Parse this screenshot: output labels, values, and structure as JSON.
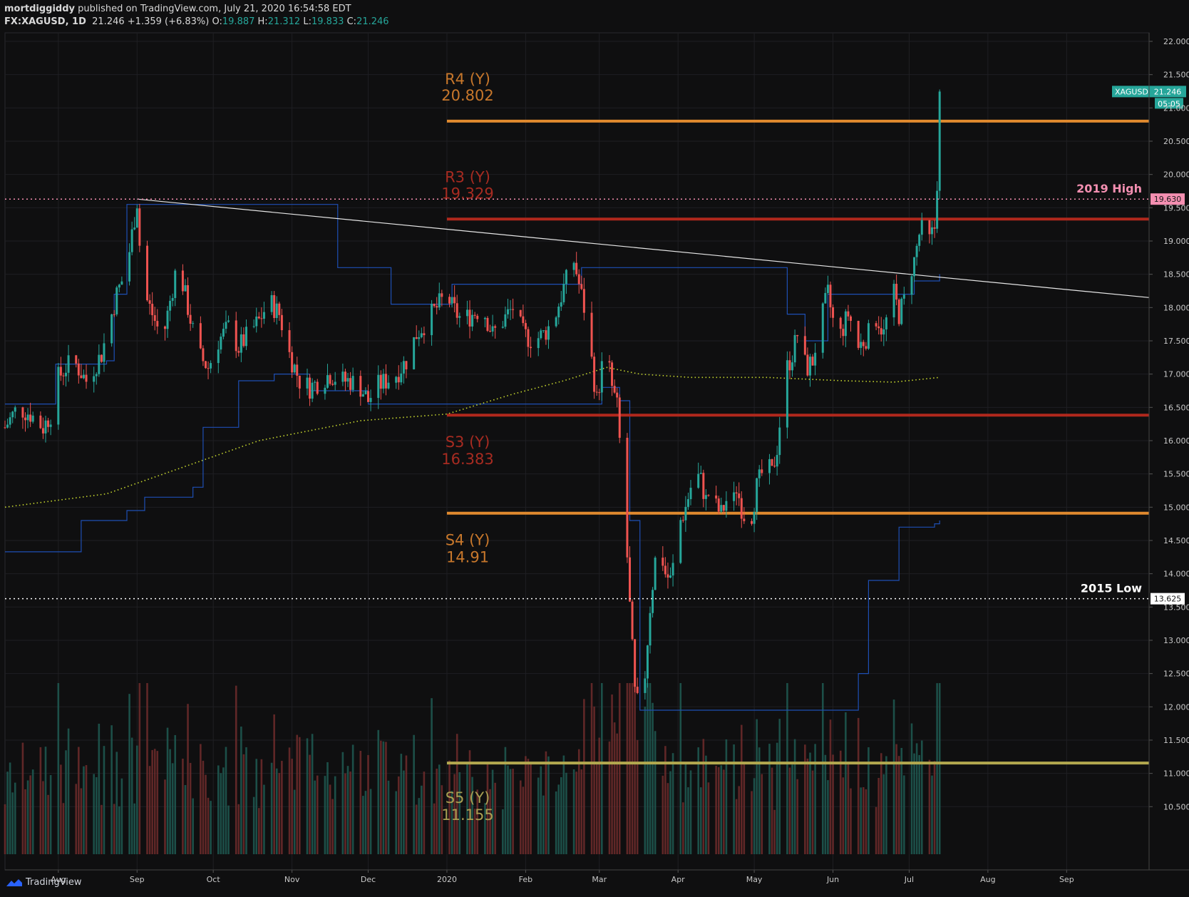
{
  "header": {
    "author": "mortdiggiddy",
    "published": " published on TradingView.com, July 21, 2020 16:54:58 EDT",
    "symbol": "FX:XAGUSD, 1D",
    "last": "21.246",
    "change": "+1.359 (+6.83%)",
    "o_label": "O:",
    "o": "19.887",
    "h_label": "H:",
    "h": "21.312",
    "l_label": "L:",
    "l": "19.833",
    "c_label": "C:",
    "c": "21.246"
  },
  "footer": {
    "brand": "TradingView",
    "logo_icon": "tradingview-logo-icon"
  },
  "colors": {
    "background": "#0f0f10",
    "up": "#26a69a",
    "down": "#ef5350",
    "r4": "#e08a2e",
    "r3": "#b0281c",
    "s3": "#b0281c",
    "s4": "#e08a2e",
    "s5": "#b3a94f",
    "ma": "#c6d62e",
    "donchian": "#1e4fb4",
    "trend": "#e6e6e6"
  },
  "chart_data": {
    "type": "candlestick",
    "ylim": [
      10.2,
      22.2
    ],
    "y_ticks": [
      "10.500",
      "11.000",
      "11.500",
      "12.000",
      "12.500",
      "13.000",
      "13.500",
      "14.000",
      "14.500",
      "15.000",
      "15.500",
      "16.000",
      "16.500",
      "17.000",
      "17.500",
      "18.000",
      "18.500",
      "19.000",
      "19.500",
      "20.000",
      "20.500",
      "21.000",
      "21.500",
      "22.000"
    ],
    "x_ticks": [
      {
        "label": "Aug",
        "day": 21
      },
      {
        "label": "Sep",
        "day": 52
      },
      {
        "label": "Oct",
        "day": 82
      },
      {
        "label": "Nov",
        "day": 113
      },
      {
        "label": "Dec",
        "day": 143
      },
      {
        "label": "2020",
        "day": 174
      },
      {
        "label": "Feb",
        "day": 205
      },
      {
        "label": "Mar",
        "day": 234
      },
      {
        "label": "Apr",
        "day": 265
      },
      {
        "label": "May",
        "day": 295
      },
      {
        "label": "Jun",
        "day": 326
      },
      {
        "label": "Jul",
        "day": 356
      },
      {
        "label": "Aug",
        "day": 387
      },
      {
        "label": "Sep",
        "day": 418
      }
    ],
    "price_path": [
      [
        0,
        16.2
      ],
      [
        5,
        16.5
      ],
      [
        10,
        16.4
      ],
      [
        15,
        16.2
      ],
      [
        18,
        16.4
      ],
      [
        20,
        16.9
      ],
      [
        24,
        17.1
      ],
      [
        27,
        17.2
      ],
      [
        32,
        16.9
      ],
      [
        38,
        17.3
      ],
      [
        40,
        17.6
      ],
      [
        44,
        18.2
      ],
      [
        48,
        18.6
      ],
      [
        50,
        19.1
      ],
      [
        52,
        19.6
      ],
      [
        54,
        18.3
      ],
      [
        58,
        17.9
      ],
      [
        62,
        17.5
      ],
      [
        66,
        18.3
      ],
      [
        68,
        18.7
      ],
      [
        72,
        18.0
      ],
      [
        76,
        17.3
      ],
      [
        80,
        17.1
      ],
      [
        84,
        17.5
      ],
      [
        88,
        17.7
      ],
      [
        92,
        17.4
      ],
      [
        96,
        17.6
      ],
      [
        100,
        17.8
      ],
      [
        104,
        18.1
      ],
      [
        108,
        17.9
      ],
      [
        112,
        17.3
      ],
      [
        116,
        16.9
      ],
      [
        120,
        16.8
      ],
      [
        124,
        16.9
      ],
      [
        128,
        17.0
      ],
      [
        132,
        16.9
      ],
      [
        136,
        16.9
      ],
      [
        140,
        16.8
      ],
      [
        143,
        16.6
      ],
      [
        146,
        16.8
      ],
      [
        150,
        16.9
      ],
      [
        154,
        17.0
      ],
      [
        158,
        17.2
      ],
      [
        162,
        17.6
      ],
      [
        166,
        17.8
      ],
      [
        170,
        18.0
      ],
      [
        174,
        18.2
      ],
      [
        176,
        18.0
      ],
      [
        180,
        17.8
      ],
      [
        184,
        17.9
      ],
      [
        188,
        18.0
      ],
      [
        192,
        17.6
      ],
      [
        196,
        17.8
      ],
      [
        200,
        18.0
      ],
      [
        204,
        17.6
      ],
      [
        208,
        17.5
      ],
      [
        212,
        17.6
      ],
      [
        216,
        17.8
      ],
      [
        220,
        18.3
      ],
      [
        224,
        18.7
      ],
      [
        228,
        18.0
      ],
      [
        230,
        17.5
      ],
      [
        233,
        16.6
      ],
      [
        235,
        17.1
      ],
      [
        237,
        17.3
      ],
      [
        239,
        16.8
      ],
      [
        241,
        16.5
      ],
      [
        244,
        15.0
      ],
      [
        246,
        13.5
      ],
      [
        248,
        12.2
      ],
      [
        250,
        11.9
      ],
      [
        252,
        12.5
      ],
      [
        254,
        13.5
      ],
      [
        256,
        14.2
      ],
      [
        258,
        14.4
      ],
      [
        260,
        14.0
      ],
      [
        262,
        13.9
      ],
      [
        264,
        14.3
      ],
      [
        266,
        14.8
      ],
      [
        268,
        15.0
      ],
      [
        270,
        15.3
      ],
      [
        272,
        15.5
      ],
      [
        274,
        15.4
      ],
      [
        276,
        15.1
      ],
      [
        278,
        15.3
      ],
      [
        280,
        15.0
      ],
      [
        282,
        14.9
      ],
      [
        284,
        15.1
      ],
      [
        286,
        14.9
      ],
      [
        288,
        15.3
      ],
      [
        290,
        15.0
      ],
      [
        292,
        14.8
      ],
      [
        294,
        14.9
      ],
      [
        296,
        15.3
      ],
      [
        298,
        15.5
      ],
      [
        300,
        15.6
      ],
      [
        302,
        15.5
      ],
      [
        304,
        15.9
      ],
      [
        306,
        16.6
      ],
      [
        308,
        17.1
      ],
      [
        310,
        17.3
      ],
      [
        312,
        17.6
      ],
      [
        314,
        17.2
      ],
      [
        316,
        17.1
      ],
      [
        318,
        17.2
      ],
      [
        320,
        17.6
      ],
      [
        322,
        17.9
      ],
      [
        324,
        18.2
      ],
      [
        326,
        17.8
      ],
      [
        328,
        17.5
      ],
      [
        330,
        17.7
      ],
      [
        332,
        17.9
      ],
      [
        334,
        17.7
      ],
      [
        336,
        17.4
      ],
      [
        338,
        17.5
      ],
      [
        340,
        17.6
      ],
      [
        342,
        17.9
      ],
      [
        344,
        17.8
      ],
      [
        346,
        17.6
      ],
      [
        348,
        18.0
      ],
      [
        350,
        18.2
      ],
      [
        352,
        17.9
      ],
      [
        354,
        18.1
      ],
      [
        356,
        18.5
      ],
      [
        358,
        18.7
      ],
      [
        360,
        19.1
      ],
      [
        362,
        19.2
      ],
      [
        364,
        19.0
      ],
      [
        366,
        19.2
      ],
      [
        367,
        19.9
      ],
      [
        368,
        21.25
      ]
    ],
    "last_day": 368,
    "trendline": [
      [
        52,
        19.63
      ],
      [
        418,
        18.15
      ]
    ],
    "levels": [
      {
        "name": "R4",
        "label": "R4 (Y)",
        "value": 20.802,
        "value_text": "20.802",
        "color": "#e08a2e",
        "label_color": "#c7772b",
        "start_day": 174,
        "width": 4
      },
      {
        "name": "R3",
        "label": "R3 (Y)",
        "value": 19.329,
        "value_text": "19.329",
        "color": "#b0281c",
        "label_color": "#a72b21",
        "start_day": 174,
        "width": 4
      },
      {
        "name": "S3",
        "label": "S3 (Y)",
        "value": 16.383,
        "value_text": "16.383",
        "color": "#b0281c",
        "label_color": "#a72b21",
        "start_day": 174,
        "width": 4
      },
      {
        "name": "S4",
        "label": "S4 (Y)",
        "value": 14.91,
        "value_text": "14.91",
        "color": "#e08a2e",
        "label_color": "#c7772b",
        "start_day": 174,
        "width": 4
      },
      {
        "name": "S5",
        "label": "S5 (Y)",
        "value": 11.155,
        "value_text": "11.155",
        "color": "#b3a94f",
        "label_color": "#a99f52",
        "start_day": 174,
        "width": 4
      }
    ],
    "annotations": [
      {
        "name": "2019-high",
        "text": "2019 High",
        "value": 19.63,
        "tag": "19.630",
        "color": "#f48fb1",
        "tag_bg": "#f48fb1",
        "tag_fg": "#1a1a1a"
      },
      {
        "name": "2015-low",
        "text": "2015 Low",
        "value": 13.625,
        "tag": "13.625",
        "color": "#ffffff",
        "tag_bg": "#ffffff",
        "tag_fg": "#1a1a1a"
      }
    ],
    "last_price": {
      "symbol": "XAGUSD",
      "value": 21.246,
      "text": "21.246",
      "countdown": "05:05"
    }
  }
}
